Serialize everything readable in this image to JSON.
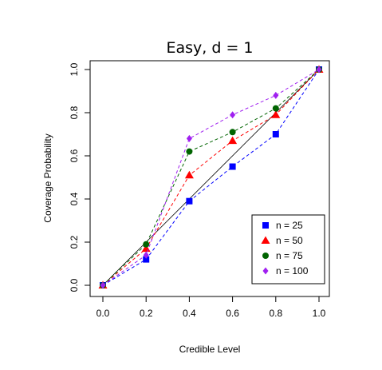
{
  "chart_data": {
    "type": "line",
    "title": "Easy, d = 1",
    "xlabel": "Credible Level",
    "ylabel": "Coverage Probability",
    "xlim": [
      0,
      1
    ],
    "ylim": [
      0,
      1
    ],
    "x_ticks": [
      "0.0",
      "0.2",
      "0.4",
      "0.6",
      "0.8",
      "1.0"
    ],
    "y_ticks": [
      "0.0",
      "0.2",
      "0.4",
      "0.6",
      "0.8",
      "1.0"
    ],
    "grid": false,
    "legend_position": "bottom-right",
    "reference_line": {
      "from": [
        0,
        0
      ],
      "to": [
        1,
        1
      ],
      "color": "#000000"
    },
    "x": [
      0.0,
      0.2,
      0.4,
      0.6,
      0.8,
      1.0
    ],
    "series": [
      {
        "name": "n = 25",
        "values": [
          0.0,
          0.12,
          0.39,
          0.55,
          0.7,
          1.0
        ],
        "color": "#0000ff",
        "marker": "square"
      },
      {
        "name": "n = 50",
        "values": [
          0.0,
          0.17,
          0.51,
          0.67,
          0.79,
          1.0
        ],
        "color": "#ff0000",
        "marker": "triangle"
      },
      {
        "name": "n = 75",
        "values": [
          0.0,
          0.19,
          0.62,
          0.71,
          0.82,
          1.0
        ],
        "color": "#006400",
        "marker": "circle"
      },
      {
        "name": "n = 100",
        "values": [
          0.0,
          0.14,
          0.68,
          0.79,
          0.88,
          1.0
        ],
        "color": "#a020f0",
        "marker": "diamond"
      }
    ]
  }
}
